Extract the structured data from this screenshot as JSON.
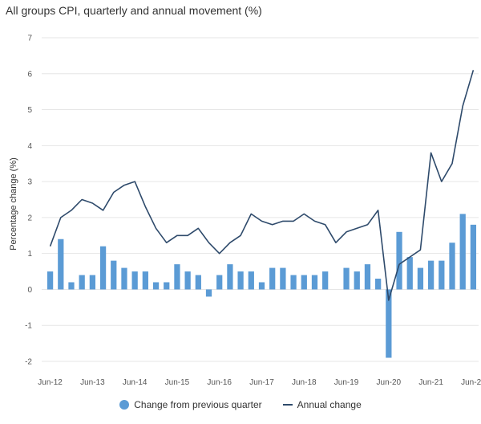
{
  "chart_data": {
    "type": "bar",
    "title": "All groups CPI, quarterly and annual movement (%)",
    "ylabel": "Percentage change (%)",
    "xlabel": "",
    "ylim": [
      -2,
      7
    ],
    "yticks": [
      -2,
      -1,
      0,
      1,
      2,
      3,
      4,
      5,
      6,
      7
    ],
    "grid": "horizontal",
    "legend_position": "bottom",
    "x_tick_labels": [
      "Jun-12",
      "Jun-13",
      "Jun-14",
      "Jun-15",
      "Jun-16",
      "Jun-17",
      "Jun-18",
      "Jun-19",
      "Jun-20",
      "Jun-21",
      "Jun-22"
    ],
    "categories": [
      "Jun-12",
      "Sep-12",
      "Dec-12",
      "Mar-13",
      "Jun-13",
      "Sep-13",
      "Dec-13",
      "Mar-14",
      "Jun-14",
      "Sep-14",
      "Dec-14",
      "Mar-15",
      "Jun-15",
      "Sep-15",
      "Dec-15",
      "Mar-16",
      "Jun-16",
      "Sep-16",
      "Dec-16",
      "Mar-17",
      "Jun-17",
      "Sep-17",
      "Dec-17",
      "Mar-18",
      "Jun-18",
      "Sep-18",
      "Dec-18",
      "Mar-19",
      "Jun-19",
      "Sep-19",
      "Dec-19",
      "Mar-20",
      "Jun-20",
      "Sep-20",
      "Dec-20",
      "Mar-21",
      "Jun-21",
      "Sep-21",
      "Dec-21",
      "Mar-22",
      "Jun-22"
    ],
    "series": [
      {
        "name": "Change from previous quarter",
        "kind": "bar",
        "color": "#5b9bd5",
        "values": [
          0.5,
          1.4,
          0.2,
          0.4,
          0.4,
          1.2,
          0.8,
          0.6,
          0.5,
          0.5,
          0.2,
          0.2,
          0.7,
          0.5,
          0.4,
          -0.2,
          0.4,
          0.7,
          0.5,
          0.5,
          0.2,
          0.6,
          0.6,
          0.4,
          0.4,
          0.4,
          0.5,
          0.0,
          0.6,
          0.5,
          0.7,
          0.3,
          -1.9,
          1.6,
          0.9,
          0.6,
          0.8,
          0.8,
          1.3,
          2.1,
          1.8
        ]
      },
      {
        "name": "Annual change",
        "kind": "line",
        "color": "#2e4a6b",
        "values": [
          1.2,
          2.0,
          2.2,
          2.5,
          2.4,
          2.2,
          2.7,
          2.9,
          3.0,
          2.3,
          1.7,
          1.3,
          1.5,
          1.5,
          1.7,
          1.3,
          1.0,
          1.3,
          1.5,
          2.1,
          1.9,
          1.8,
          1.9,
          1.9,
          2.1,
          1.9,
          1.8,
          1.3,
          1.6,
          1.7,
          1.8,
          2.2,
          -0.3,
          0.7,
          0.9,
          1.1,
          3.8,
          3.0,
          3.5,
          5.1,
          6.1
        ]
      }
    ]
  }
}
